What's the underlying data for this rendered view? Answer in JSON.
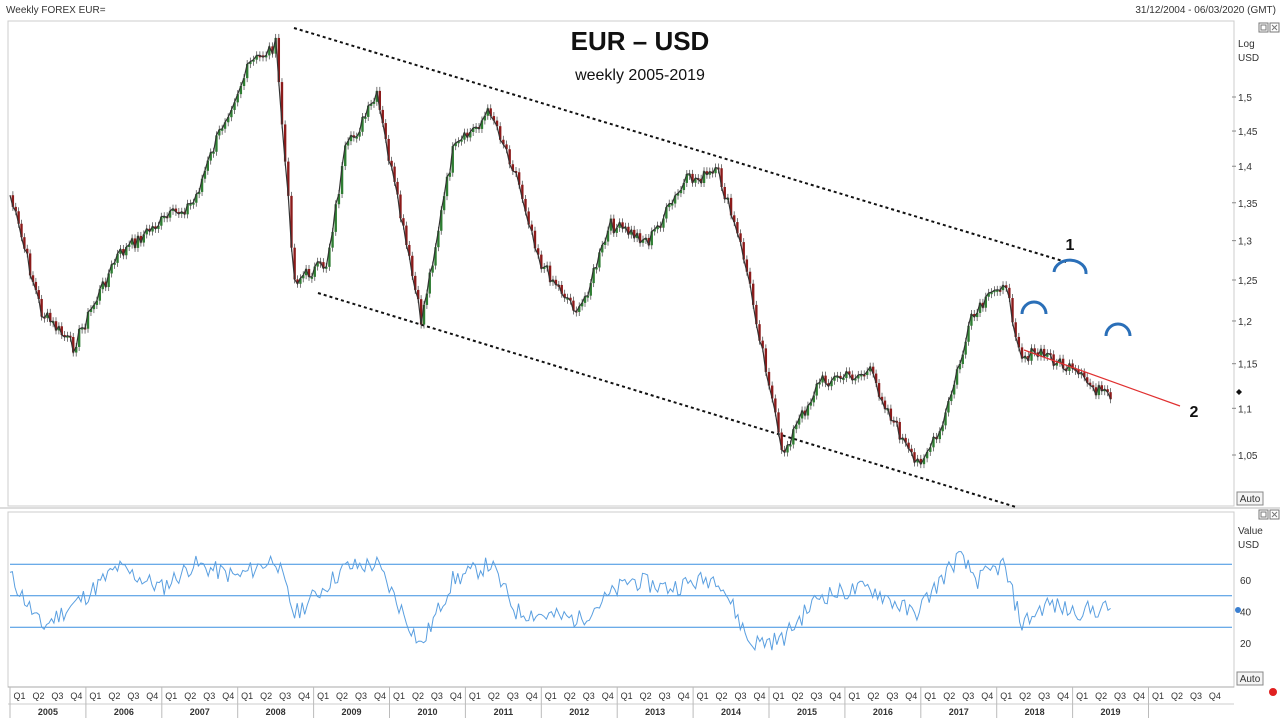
{
  "header": {
    "window_title": "Weekly FOREX EUR=",
    "date_range": "31/12/2004 - 06/03/2020 (GMT)"
  },
  "chart_data": [
    {
      "type": "line",
      "style": "candlestick",
      "title": "EUR – USD",
      "subtitle": "weekly 2005-2019",
      "xlabel": "",
      "ylabel": "Log\nUSD",
      "scale": "log",
      "ylim": [
        1.0,
        1.61
      ],
      "y_ticks": [
        "1,05",
        "1,1",
        "1,15",
        "1,2",
        "1,25",
        "1,3",
        "1,35",
        "1,4",
        "1,45",
        "1,5"
      ],
      "y_tick_values": [
        1.05,
        1.1,
        1.15,
        1.2,
        1.25,
        1.3,
        1.35,
        1.4,
        1.45,
        1.5
      ],
      "auto_label": "Auto",
      "grid": false,
      "x": [
        "2005-01",
        "2005-06",
        "2005-11",
        "2006-06",
        "2006-12",
        "2007-06",
        "2007-11",
        "2008-03",
        "2008-07",
        "2008-10",
        "2009-03",
        "2009-06",
        "2009-11",
        "2010-06",
        "2010-11",
        "2011-05",
        "2011-09",
        "2012-01",
        "2012-07",
        "2012-12",
        "2013-06",
        "2013-12",
        "2014-05",
        "2014-09",
        "2015-01",
        "2015-03",
        "2015-09",
        "2016-05",
        "2016-12",
        "2017-04",
        "2017-09",
        "2018-02",
        "2018-05",
        "2018-09",
        "2019-01",
        "2019-07"
      ],
      "values": [
        1.36,
        1.21,
        1.17,
        1.28,
        1.32,
        1.35,
        1.47,
        1.55,
        1.58,
        1.25,
        1.27,
        1.42,
        1.5,
        1.2,
        1.42,
        1.48,
        1.39,
        1.27,
        1.21,
        1.32,
        1.3,
        1.38,
        1.39,
        1.28,
        1.13,
        1.05,
        1.13,
        1.14,
        1.04,
        1.07,
        1.2,
        1.25,
        1.16,
        1.16,
        1.14,
        1.11
      ],
      "annotations": [
        {
          "label": "1",
          "kind": "head arc"
        },
        {
          "label": "2",
          "kind": "neckline"
        }
      ],
      "series": [
        {
          "name": "Weekly FOREX EUR="
        }
      ]
    },
    {
      "type": "line",
      "title": "",
      "ylabel": "Value\nUSD",
      "ylim": [
        10,
        80
      ],
      "y_ticks": [
        "20",
        "40",
        "60"
      ],
      "y_tick_values": [
        20,
        40,
        60
      ],
      "reference_lines": [
        30,
        50,
        70
      ],
      "auto_label": "Auto",
      "current_value": 42,
      "x": [
        "2005-01",
        "2005-06",
        "2006-01",
        "2006-06",
        "2007-01",
        "2007-06",
        "2008-01",
        "2008-07",
        "2008-10",
        "2009-06",
        "2009-11",
        "2010-06",
        "2010-11",
        "2011-05",
        "2011-09",
        "2012-07",
        "2013-03",
        "2013-09",
        "2014-05",
        "2014-10",
        "2015-03",
        "2015-09",
        "2016-05",
        "2016-12",
        "2017-07",
        "2017-10",
        "2018-02",
        "2018-05",
        "2018-09",
        "2019-01",
        "2019-07"
      ],
      "values": [
        63,
        30,
        50,
        68,
        55,
        70,
        62,
        74,
        38,
        68,
        70,
        18,
        60,
        70,
        40,
        35,
        60,
        55,
        62,
        20,
        22,
        50,
        55,
        38,
        75,
        60,
        70,
        32,
        45,
        40,
        42
      ]
    }
  ],
  "time_axis": {
    "quarters": [
      "Q1",
      "Q2",
      "Q3",
      "Q4"
    ],
    "years": [
      "2005",
      "2006",
      "2007",
      "2008",
      "2009",
      "2010",
      "2011",
      "2012",
      "2013",
      "2014",
      "2015",
      "2016",
      "2017",
      "2018",
      "2019"
    ]
  }
}
